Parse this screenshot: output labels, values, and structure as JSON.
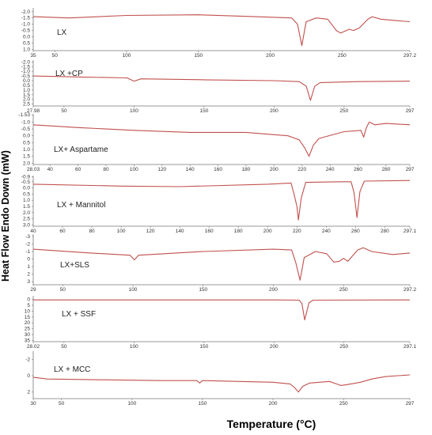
{
  "figure": {
    "ylabel": "Heat Flow Endo Down (mW)",
    "xlabel": "Temperature (°C)",
    "line_color": "#c0504d"
  },
  "chart_data": [
    {
      "type": "line",
      "label": "LX",
      "x_ticks": [
        "35",
        "50",
        "100",
        "150",
        "200",
        "250",
        "297.2"
      ],
      "y_ticks": [
        "-2.0",
        "-1.5",
        "-1.0",
        "-0.5",
        "0.0",
        "0.5",
        "1.0"
      ],
      "x_range": [
        35,
        297.2
      ],
      "y_range": [
        -2.3,
        1.1
      ],
      "points": [
        [
          35,
          -1.6
        ],
        [
          60,
          -1.5
        ],
        [
          100,
          -1.7
        ],
        [
          150,
          -1.75
        ],
        [
          190,
          -1.6
        ],
        [
          215,
          -1.5
        ],
        [
          219,
          -1.0
        ],
        [
          222,
          0.7
        ],
        [
          225,
          -1.2
        ],
        [
          232,
          -1.5
        ],
        [
          240,
          -1.4
        ],
        [
          246,
          -0.5
        ],
        [
          249,
          -0.3
        ],
        [
          255,
          -0.6
        ],
        [
          258,
          -0.5
        ],
        [
          262,
          -0.7
        ],
        [
          268,
          -1.4
        ],
        [
          271,
          -1.6
        ],
        [
          277,
          -1.4
        ],
        [
          297.2,
          -1.2
        ]
      ]
    },
    {
      "type": "line",
      "label": "LX +CP",
      "x_ticks": [
        "27.98",
        "50",
        "100",
        "150",
        "200",
        "250",
        "297"
      ],
      "y_ticks": [
        "-2.0",
        "-1.5",
        "-1.0",
        "-0.5",
        "0.0",
        "0.5",
        "1.0",
        "1.5",
        "2.0",
        "2.5"
      ],
      "x_range": [
        27.98,
        297
      ],
      "y_range": [
        -2.2,
        2.7
      ],
      "points": [
        [
          27.98,
          -0.5
        ],
        [
          60,
          -0.4
        ],
        [
          95,
          -0.3
        ],
        [
          100,
          0.05
        ],
        [
          105,
          -0.2
        ],
        [
          150,
          -0.1
        ],
        [
          200,
          0.0
        ],
        [
          218,
          0.1
        ],
        [
          223,
          0.6
        ],
        [
          226,
          2.1
        ],
        [
          229,
          0.6
        ],
        [
          233,
          0.2
        ],
        [
          260,
          0.1
        ],
        [
          297,
          0.05
        ]
      ]
    },
    {
      "type": "line",
      "label": "LX+ Aspartame",
      "x_ticks": [
        "28.03",
        "40",
        "60",
        "80",
        "100",
        "120",
        "140",
        "160",
        "180",
        "200",
        "220",
        "240",
        "260",
        "280",
        "297"
      ],
      "y_ticks": [
        "-1.53",
        "-1.0",
        "-0.5",
        "0.0",
        "0.5",
        "1.0",
        "1.5",
        "2.0"
      ],
      "x_range": [
        28.03,
        297
      ],
      "y_range": [
        -1.6,
        2.1
      ],
      "points": [
        [
          28.03,
          -0.8
        ],
        [
          60,
          -0.6
        ],
        [
          100,
          -0.4
        ],
        [
          140,
          -0.25
        ],
        [
          180,
          -0.25
        ],
        [
          210,
          0.0
        ],
        [
          218,
          0.3
        ],
        [
          222,
          0.9
        ],
        [
          225,
          1.5
        ],
        [
          228,
          0.7
        ],
        [
          232,
          0.2
        ],
        [
          250,
          -0.3
        ],
        [
          262,
          -0.4
        ],
        [
          264,
          0.1
        ],
        [
          266,
          -0.6
        ],
        [
          268,
          -1.0
        ],
        [
          272,
          -0.8
        ],
        [
          280,
          -0.9
        ],
        [
          297,
          -0.8
        ]
      ]
    },
    {
      "type": "line",
      "label": "LX + Mannitol",
      "x_ticks": [
        "40",
        "60",
        "80",
        "100",
        "120",
        "140",
        "160",
        "180",
        "200",
        "220",
        "240",
        "260",
        "280",
        "297.1"
      ],
      "y_ticks": [
        "-0.9",
        "-0.5",
        "0.0",
        "0.5",
        "1.0",
        "1.5",
        "2.0",
        "2.5",
        "3.0"
      ],
      "x_range": [
        40,
        297.1
      ],
      "y_range": [
        -1.0,
        3.1
      ],
      "points": [
        [
          40,
          -0.3
        ],
        [
          100,
          -0.15
        ],
        [
          140,
          -0.1
        ],
        [
          200,
          -0.3
        ],
        [
          216,
          -0.4
        ],
        [
          218,
          0.5
        ],
        [
          220,
          1.5
        ],
        [
          221,
          2.6
        ],
        [
          223,
          0.8
        ],
        [
          226,
          -0.45
        ],
        [
          250,
          -0.5
        ],
        [
          257,
          -0.5
        ],
        [
          259,
          0.4
        ],
        [
          261,
          2.4
        ],
        [
          263,
          0.3
        ],
        [
          266,
          -0.55
        ],
        [
          297.1,
          -0.6
        ]
      ]
    },
    {
      "type": "line",
      "label": "LX+SLS",
      "x_ticks": [
        "29",
        "50",
        "100",
        "150",
        "200",
        "250",
        "297.2"
      ],
      "y_ticks": [
        "-3",
        "-2",
        "-1",
        "0",
        "1",
        "2",
        "3"
      ],
      "x_range": [
        29,
        297.2
      ],
      "y_range": [
        -3.3,
        3.4
      ],
      "points": [
        [
          29,
          -1.3
        ],
        [
          70,
          -0.8
        ],
        [
          98,
          -0.5
        ],
        [
          101,
          0.1
        ],
        [
          104,
          -0.5
        ],
        [
          150,
          -1.0
        ],
        [
          200,
          -1.3
        ],
        [
          213,
          -1.2
        ],
        [
          216,
          0.5
        ],
        [
          219,
          2.8
        ],
        [
          222,
          -0.2
        ],
        [
          230,
          -1.0
        ],
        [
          238,
          -0.7
        ],
        [
          243,
          0.4
        ],
        [
          247,
          0.3
        ],
        [
          250,
          -0.1
        ],
        [
          253,
          0.3
        ],
        [
          260,
          -1.2
        ],
        [
          264,
          -1.5
        ],
        [
          270,
          -1.0
        ],
        [
          285,
          -0.6
        ],
        [
          297.2,
          -0.8
        ]
      ]
    },
    {
      "type": "line",
      "label": "LX + SSF",
      "x_ticks": [
        "28.02",
        "50",
        "100",
        "150",
        "200",
        "250",
        "297.1"
      ],
      "y_ticks": [
        "0",
        "5",
        "10",
        "15",
        "20",
        "25",
        "30",
        "35"
      ],
      "x_range": [
        28.02,
        297.1
      ],
      "y_range": [
        -3,
        36
      ],
      "points": [
        [
          28.02,
          0.5
        ],
        [
          150,
          0.5
        ],
        [
          200,
          0.5
        ],
        [
          218,
          0.7
        ],
        [
          220,
          3.5
        ],
        [
          222,
          17.5
        ],
        [
          225,
          3
        ],
        [
          228,
          0.7
        ],
        [
          297.1,
          0.5
        ]
      ]
    },
    {
      "type": "line",
      "label": "LX + MCC",
      "x_ticks": [
        "30",
        "50",
        "100",
        "150",
        "200",
        "250",
        "297"
      ],
      "y_ticks": [
        "-2",
        "0",
        "2"
      ],
      "x_range": [
        30,
        297
      ],
      "y_range": [
        -3.0,
        2.8
      ],
      "points": [
        [
          30,
          0.2
        ],
        [
          40,
          0.4
        ],
        [
          80,
          0.5
        ],
        [
          120,
          0.6
        ],
        [
          146,
          0.6
        ],
        [
          148,
          0.9
        ],
        [
          150,
          0.6
        ],
        [
          200,
          0.8
        ],
        [
          212,
          1.0
        ],
        [
          215,
          1.4
        ],
        [
          218,
          2.0
        ],
        [
          221,
          1.3
        ],
        [
          226,
          0.9
        ],
        [
          240,
          0.7
        ],
        [
          245,
          1.0
        ],
        [
          248,
          1.2
        ],
        [
          252,
          1.1
        ],
        [
          262,
          0.8
        ],
        [
          270,
          0.4
        ],
        [
          280,
          0.1
        ],
        [
          297,
          -0.1
        ]
      ]
    }
  ]
}
